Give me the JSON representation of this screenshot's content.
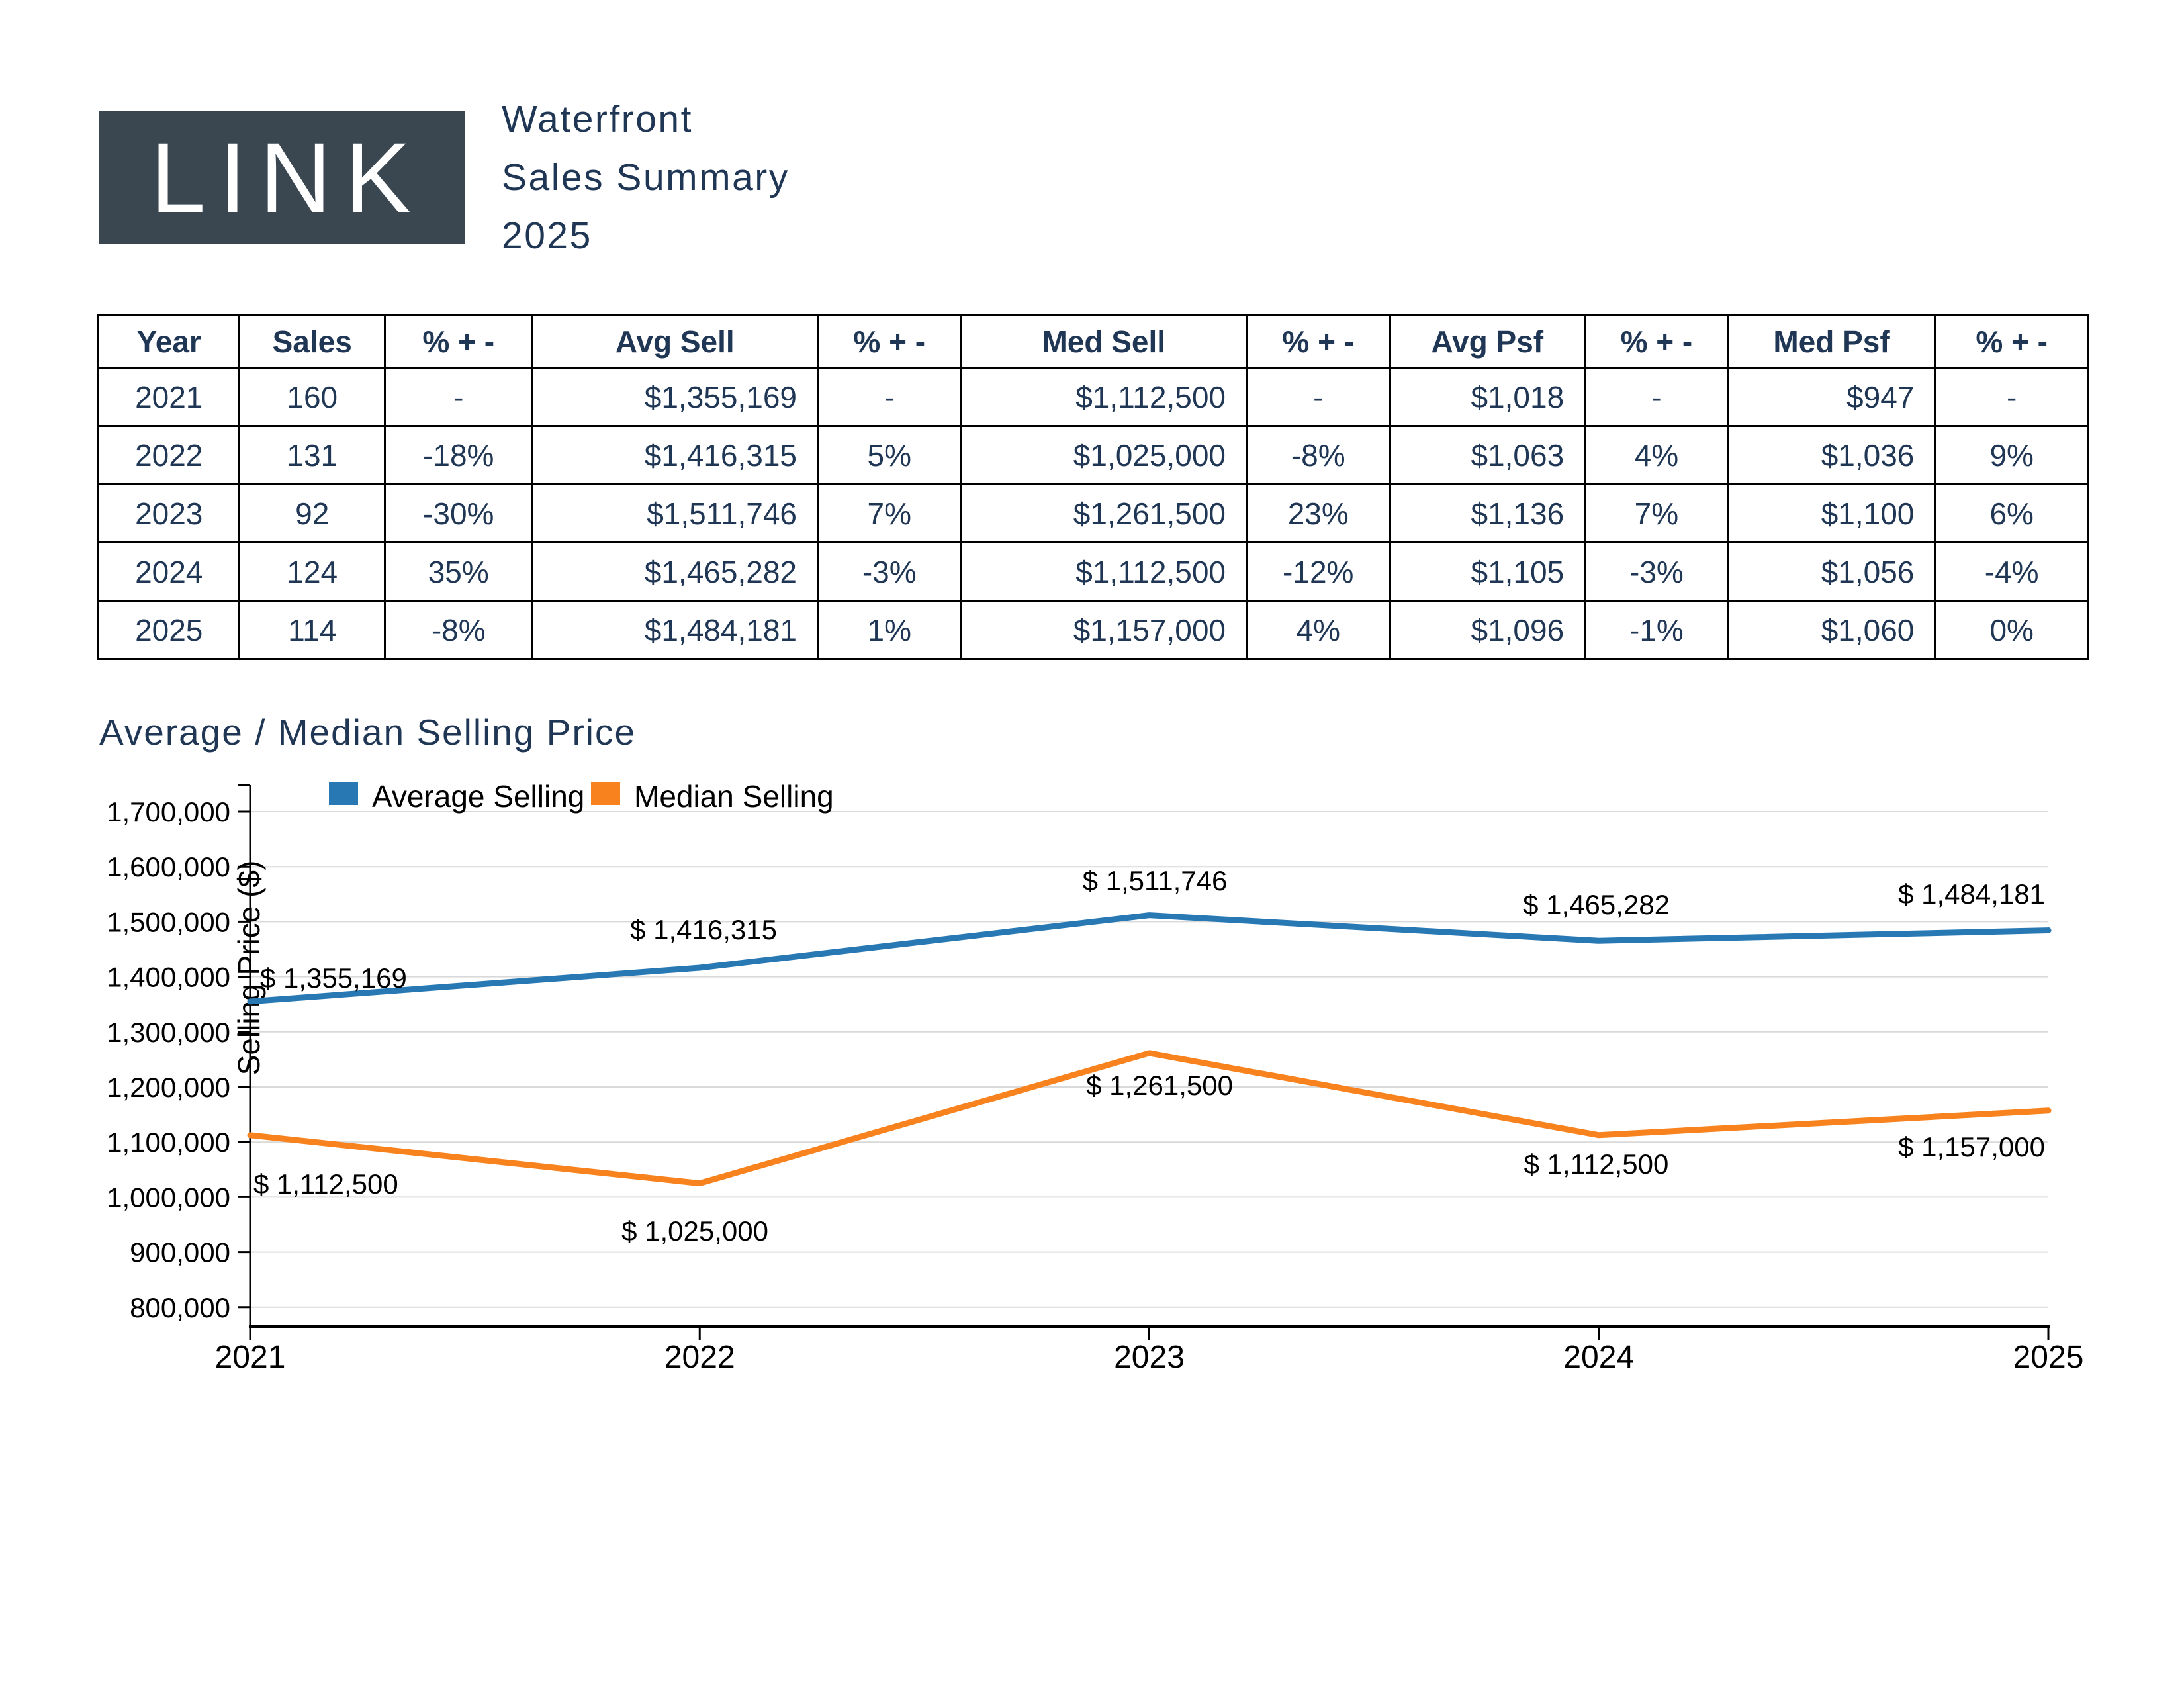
{
  "header": {
    "logo_text": "LINK",
    "title_lines": [
      "Waterfront",
      "Sales Summary",
      "2025"
    ]
  },
  "table": {
    "columns": [
      "Year",
      "Sales",
      "% + -",
      "Avg Sell",
      "% + -",
      "Med Sell",
      "% + -",
      "Avg Psf",
      "% + -",
      "Med Psf",
      "% + -"
    ],
    "rows": [
      [
        "2021",
        "160",
        "-",
        "$1,355,169",
        "-",
        "$1,112,500",
        "-",
        "$1,018",
        "-",
        "$947",
        "-"
      ],
      [
        "2022",
        "131",
        "-18%",
        "$1,416,315",
        "5%",
        "$1,025,000",
        "-8%",
        "$1,063",
        "4%",
        "$1,036",
        "9%"
      ],
      [
        "2023",
        "92",
        "-30%",
        "$1,511,746",
        "7%",
        "$1,261,500",
        "23%",
        "$1,136",
        "7%",
        "$1,100",
        "6%"
      ],
      [
        "2024",
        "124",
        "35%",
        "$1,465,282",
        "-3%",
        "$1,112,500",
        "-12%",
        "$1,105",
        "-3%",
        "$1,056",
        "-4%"
      ],
      [
        "2025",
        "114",
        "-8%",
        "$1,484,181",
        "1%",
        "$1,157,000",
        "4%",
        "$1,096",
        "-1%",
        "$1,060",
        "0%"
      ]
    ]
  },
  "chart_data": {
    "type": "line",
    "title": "Average / Median Selling Price",
    "xlabel": "",
    "ylabel": "Selling Price ($)",
    "x": [
      2021,
      2022,
      2023,
      2024,
      2025
    ],
    "x_tick_labels": [
      "2021",
      "2022",
      "2023",
      "2024",
      "2025"
    ],
    "ylim": [
      765000,
      1748000
    ],
    "yticks": [
      800000,
      900000,
      1000000,
      1100000,
      1200000,
      1300000,
      1400000,
      1500000,
      1600000,
      1700000
    ],
    "ytick_labels": [
      "800,000",
      "900,000",
      "1,000,000",
      "1,100,000",
      "1,200,000",
      "1,300,000",
      "1,400,000",
      "1,500,000",
      "1,600,000",
      "1,700,000"
    ],
    "grid": true,
    "legend_position": "top-inside",
    "colors": {
      "average": "#2878B4",
      "median": "#F8821D",
      "gridline": "#D9D9D9",
      "axis": "#000000",
      "label_text": "#000000"
    },
    "series": [
      {
        "name": "Average Selling",
        "color": "#2878B4",
        "values": [
          1355169,
          1416315,
          1511746,
          1465282,
          1484181
        ],
        "point_labels": [
          "$ 1,355,169",
          "$ 1,416,315",
          "$ 1,511,746",
          "$ 1,465,282",
          "$ 1,484,181"
        ]
      },
      {
        "name": "Median Selling",
        "color": "#F8821D",
        "values": [
          1112500,
          1025000,
          1261500,
          1112500,
          1157000
        ],
        "point_labels": [
          "$ 1,112,500",
          "$ 1,025,000",
          "$ 1,261,500",
          "$ 1,112,500",
          "$ 1,157,000"
        ]
      }
    ]
  },
  "theme": {
    "navy": "#1F3655",
    "logo_bg": "#3B4750",
    "page_bg": "#FFFFFF"
  }
}
